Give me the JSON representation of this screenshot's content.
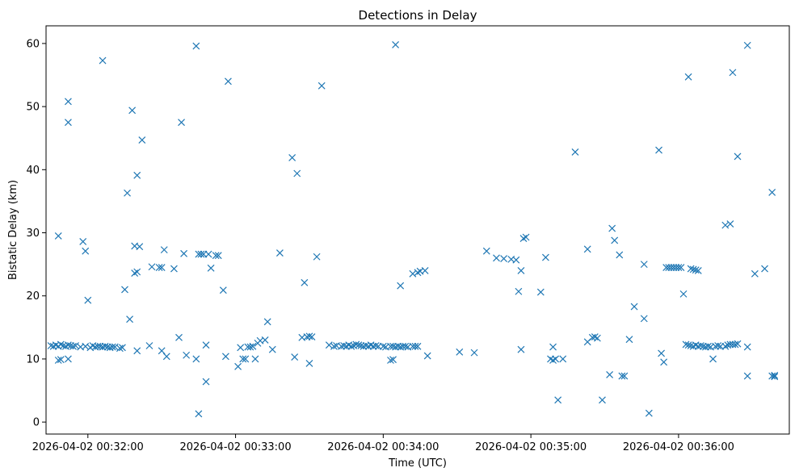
{
  "chart_data": {
    "type": "scatter",
    "title": "Detections in Delay",
    "xlabel": "Time (UTC)",
    "ylabel": "Bistatic Delay (km)",
    "marker": "x",
    "color": "#1f77b4",
    "grid": false,
    "x_ticks": [
      {
        "t": "00:32:00",
        "label": "2026-04-02 00:32:00"
      },
      {
        "t": "00:33:00",
        "label": "2026-04-02 00:33:00"
      },
      {
        "t": "00:34:00",
        "label": "2026-04-02 00:34:00"
      },
      {
        "t": "00:35:00",
        "label": "2026-04-02 00:35:00"
      },
      {
        "t": "00:36:00",
        "label": "2026-04-02 00:36:00"
      }
    ],
    "y_ticks": [
      0,
      10,
      20,
      30,
      40,
      50,
      60
    ],
    "xlim": [
      "00:31:43",
      "00:36:45"
    ],
    "ylim": [
      -1.9,
      62.8
    ],
    "points": [
      [
        "00:31:45",
        12.1
      ],
      [
        "00:31:46",
        12.0
      ],
      [
        "00:31:47",
        12.2
      ],
      [
        "00:31:48",
        12.0
      ],
      [
        "00:31:49",
        12.3
      ],
      [
        "00:31:50",
        12.1
      ],
      [
        "00:31:51",
        12.0
      ],
      [
        "00:31:52",
        12.2
      ],
      [
        "00:31:53",
        12.1
      ],
      [
        "00:31:54",
        12.0
      ],
      [
        "00:31:55",
        12.1
      ],
      [
        "00:31:57",
        11.9
      ],
      [
        "00:31:59",
        12.0
      ],
      [
        "00:32:01",
        11.8
      ],
      [
        "00:32:02",
        12.1
      ],
      [
        "00:32:03",
        11.9
      ],
      [
        "00:32:04",
        12.0
      ],
      [
        "00:32:05",
        12.0
      ],
      [
        "00:32:06",
        11.9
      ],
      [
        "00:32:07",
        12.0
      ],
      [
        "00:32:08",
        11.9
      ],
      [
        "00:32:09",
        11.8
      ],
      [
        "00:32:10",
        11.9
      ],
      [
        "00:32:11",
        11.9
      ],
      [
        "00:32:13",
        11.7
      ],
      [
        "00:32:14",
        11.8
      ],
      [
        "00:31:48",
        9.8
      ],
      [
        "00:31:49",
        9.9
      ],
      [
        "00:31:52",
        10.0
      ],
      [
        "00:31:48",
        29.5
      ],
      [
        "00:31:52",
        50.8
      ],
      [
        "00:31:52",
        47.5
      ],
      [
        "00:31:58",
        28.6
      ],
      [
        "00:31:59",
        27.1
      ],
      [
        "00:32:00",
        19.3
      ],
      [
        "00:32:06",
        57.3
      ],
      [
        "00:32:16",
        36.3
      ],
      [
        "00:32:15",
        21.0
      ],
      [
        "00:32:17",
        16.3
      ],
      [
        "00:32:18",
        49.4
      ],
      [
        "00:32:19",
        27.9
      ],
      [
        "00:32:19",
        23.6
      ],
      [
        "00:32:20",
        23.8
      ],
      [
        "00:32:20",
        11.3
      ],
      [
        "00:32:20",
        39.1
      ],
      [
        "00:32:21",
        27.8
      ],
      [
        "00:32:22",
        44.7
      ],
      [
        "00:32:25",
        12.1
      ],
      [
        "00:32:26",
        24.6
      ],
      [
        "00:32:29",
        24.5
      ],
      [
        "00:32:30",
        24.5
      ],
      [
        "00:32:30",
        11.3
      ],
      [
        "00:32:31",
        27.3
      ],
      [
        "00:32:32",
        10.4
      ],
      [
        "00:32:35",
        24.3
      ],
      [
        "00:32:37",
        13.4
      ],
      [
        "00:32:38",
        47.5
      ],
      [
        "00:32:39",
        26.7
      ],
      [
        "00:32:40",
        10.6
      ],
      [
        "00:32:44",
        10.0
      ],
      [
        "00:32:44",
        59.6
      ],
      [
        "00:32:45",
        26.6
      ],
      [
        "00:32:45",
        1.3
      ],
      [
        "00:32:46",
        26.6
      ],
      [
        "00:32:47",
        26.6
      ],
      [
        "00:32:48",
        12.2
      ],
      [
        "00:32:48",
        6.4
      ],
      [
        "00:32:49",
        26.6
      ],
      [
        "00:32:50",
        24.4
      ],
      [
        "00:32:52",
        26.4
      ],
      [
        "00:32:53",
        26.4
      ],
      [
        "00:32:55",
        20.9
      ],
      [
        "00:32:56",
        10.4
      ],
      [
        "00:32:57",
        54.0
      ],
      [
        "00:33:01",
        8.8
      ],
      [
        "00:33:02",
        11.8
      ],
      [
        "00:33:03",
        10.0
      ],
      [
        "00:33:04",
        10.0
      ],
      [
        "00:33:05",
        11.9
      ],
      [
        "00:33:06",
        11.9
      ],
      [
        "00:33:07",
        12.0
      ],
      [
        "00:33:08",
        10.0
      ],
      [
        "00:33:09",
        12.5
      ],
      [
        "00:33:10",
        12.9
      ],
      [
        "00:33:12",
        13.0
      ],
      [
        "00:33:13",
        15.9
      ],
      [
        "00:33:15",
        11.5
      ],
      [
        "00:33:18",
        26.8
      ],
      [
        "00:33:23",
        41.9
      ],
      [
        "00:33:24",
        10.3
      ],
      [
        "00:33:25",
        39.4
      ],
      [
        "00:33:27",
        13.4
      ],
      [
        "00:33:28",
        22.1
      ],
      [
        "00:33:29",
        13.5
      ],
      [
        "00:33:30",
        13.6
      ],
      [
        "00:33:30",
        9.3
      ],
      [
        "00:33:31",
        13.5
      ],
      [
        "00:33:33",
        26.2
      ],
      [
        "00:33:35",
        53.3
      ],
      [
        "00:33:38",
        12.2
      ],
      [
        "00:33:40",
        12.0
      ],
      [
        "00:33:41",
        12.1
      ],
      [
        "00:33:43",
        12.0
      ],
      [
        "00:33:44",
        12.1
      ],
      [
        "00:33:45",
        12.0
      ],
      [
        "00:33:46",
        12.2
      ],
      [
        "00:33:47",
        12.0
      ],
      [
        "00:33:48",
        12.1
      ],
      [
        "00:33:49",
        12.3
      ],
      [
        "00:33:50",
        12.2
      ],
      [
        "00:33:51",
        12.1
      ],
      [
        "00:33:52",
        12.0
      ],
      [
        "00:33:53",
        12.1
      ],
      [
        "00:33:54",
        12.0
      ],
      [
        "00:33:55",
        12.2
      ],
      [
        "00:33:56",
        12.0
      ],
      [
        "00:33:57",
        12.1
      ],
      [
        "00:33:58",
        12.0
      ],
      [
        "00:34:00",
        12.0
      ],
      [
        "00:34:01",
        11.9
      ],
      [
        "00:34:03",
        12.0
      ],
      [
        "00:34:04",
        12.0
      ],
      [
        "00:34:05",
        11.9
      ],
      [
        "00:34:06",
        12.0
      ],
      [
        "00:34:07",
        11.9
      ],
      [
        "00:34:08",
        12.0
      ],
      [
        "00:34:09",
        12.0
      ],
      [
        "00:34:10",
        11.9
      ],
      [
        "00:34:12",
        12.0
      ],
      [
        "00:34:13",
        12.0
      ],
      [
        "00:34:14",
        12.0
      ],
      [
        "00:34:03",
        9.8
      ],
      [
        "00:34:04",
        9.9
      ],
      [
        "00:34:05",
        59.8
      ],
      [
        "00:34:07",
        21.6
      ],
      [
        "00:34:12",
        23.5
      ],
      [
        "00:34:14",
        23.7
      ],
      [
        "00:34:15",
        23.9
      ],
      [
        "00:34:17",
        24.0
      ],
      [
        "00:34:18",
        10.5
      ],
      [
        "00:34:31",
        11.1
      ],
      [
        "00:34:37",
        11.0
      ],
      [
        "00:34:42",
        27.1
      ],
      [
        "00:34:46",
        26.0
      ],
      [
        "00:34:49",
        25.9
      ],
      [
        "00:34:52",
        25.8
      ],
      [
        "00:34:54",
        25.7
      ],
      [
        "00:34:55",
        20.7
      ],
      [
        "00:34:56",
        24.0
      ],
      [
        "00:34:56",
        11.5
      ],
      [
        "00:34:57",
        29.1
      ],
      [
        "00:34:58",
        29.3
      ],
      [
        "00:35:04",
        20.6
      ],
      [
        "00:35:06",
        26.1
      ],
      [
        "00:35:08",
        10.0
      ],
      [
        "00:35:09",
        11.9
      ],
      [
        "00:35:09",
        9.8
      ],
      [
        "00:35:10",
        10.0
      ],
      [
        "00:35:11",
        3.5
      ],
      [
        "00:35:13",
        10.0
      ],
      [
        "00:35:18",
        42.8
      ],
      [
        "00:35:23",
        27.4
      ],
      [
        "00:35:23",
        12.7
      ],
      [
        "00:35:25",
        13.4
      ],
      [
        "00:35:26",
        13.5
      ],
      [
        "00:35:27",
        13.3
      ],
      [
        "00:35:29",
        3.5
      ],
      [
        "00:35:32",
        7.5
      ],
      [
        "00:35:33",
        30.7
      ],
      [
        "00:35:34",
        28.8
      ],
      [
        "00:35:36",
        26.5
      ],
      [
        "00:35:37",
        7.3
      ],
      [
        "00:35:38",
        7.3
      ],
      [
        "00:35:40",
        13.1
      ],
      [
        "00:35:42",
        18.3
      ],
      [
        "00:35:46",
        16.4
      ],
      [
        "00:35:46",
        25.0
      ],
      [
        "00:35:48",
        1.4
      ],
      [
        "00:35:52",
        43.1
      ],
      [
        "00:35:53",
        10.9
      ],
      [
        "00:35:54",
        9.5
      ],
      [
        "00:35:55",
        24.5
      ],
      [
        "00:35:56",
        24.5
      ],
      [
        "00:35:57",
        24.5
      ],
      [
        "00:35:58",
        24.5
      ],
      [
        "00:35:59",
        24.5
      ],
      [
        "00:36:00",
        24.5
      ],
      [
        "00:36:01",
        24.5
      ],
      [
        "00:36:02",
        20.3
      ],
      [
        "00:36:04",
        54.7
      ],
      [
        "00:36:05",
        24.3
      ],
      [
        "00:36:06",
        24.2
      ],
      [
        "00:36:07",
        24.1
      ],
      [
        "00:36:08",
        24.0
      ],
      [
        "00:36:03",
        12.3
      ],
      [
        "00:36:04",
        12.2
      ],
      [
        "00:36:05",
        12.1
      ],
      [
        "00:36:06",
        12.0
      ],
      [
        "00:36:07",
        12.2
      ],
      [
        "00:36:08",
        12.0
      ],
      [
        "00:36:09",
        12.1
      ],
      [
        "00:36:10",
        12.0
      ],
      [
        "00:36:11",
        11.9
      ],
      [
        "00:36:12",
        12.0
      ],
      [
        "00:36:13",
        11.9
      ],
      [
        "00:36:14",
        10.0
      ],
      [
        "00:36:15",
        12.0
      ],
      [
        "00:36:16",
        12.1
      ],
      [
        "00:36:17",
        12.0
      ],
      [
        "00:36:19",
        12.0
      ],
      [
        "00:36:20",
        12.2
      ],
      [
        "00:36:21",
        12.3
      ],
      [
        "00:36:22",
        12.3
      ],
      [
        "00:36:23",
        12.3
      ],
      [
        "00:36:24",
        12.4
      ],
      [
        "00:36:28",
        11.9
      ],
      [
        "00:36:19",
        31.2
      ],
      [
        "00:36:21",
        31.4
      ],
      [
        "00:36:22",
        55.4
      ],
      [
        "00:36:24",
        42.1
      ],
      [
        "00:36:28",
        59.7
      ],
      [
        "00:36:28",
        7.3
      ],
      [
        "00:36:31",
        23.5
      ],
      [
        "00:36:35",
        24.3
      ],
      [
        "00:36:38",
        36.4
      ],
      [
        "00:36:38",
        7.3
      ],
      [
        "00:36:39",
        7.2
      ],
      [
        "00:36:39",
        7.4
      ]
    ]
  }
}
